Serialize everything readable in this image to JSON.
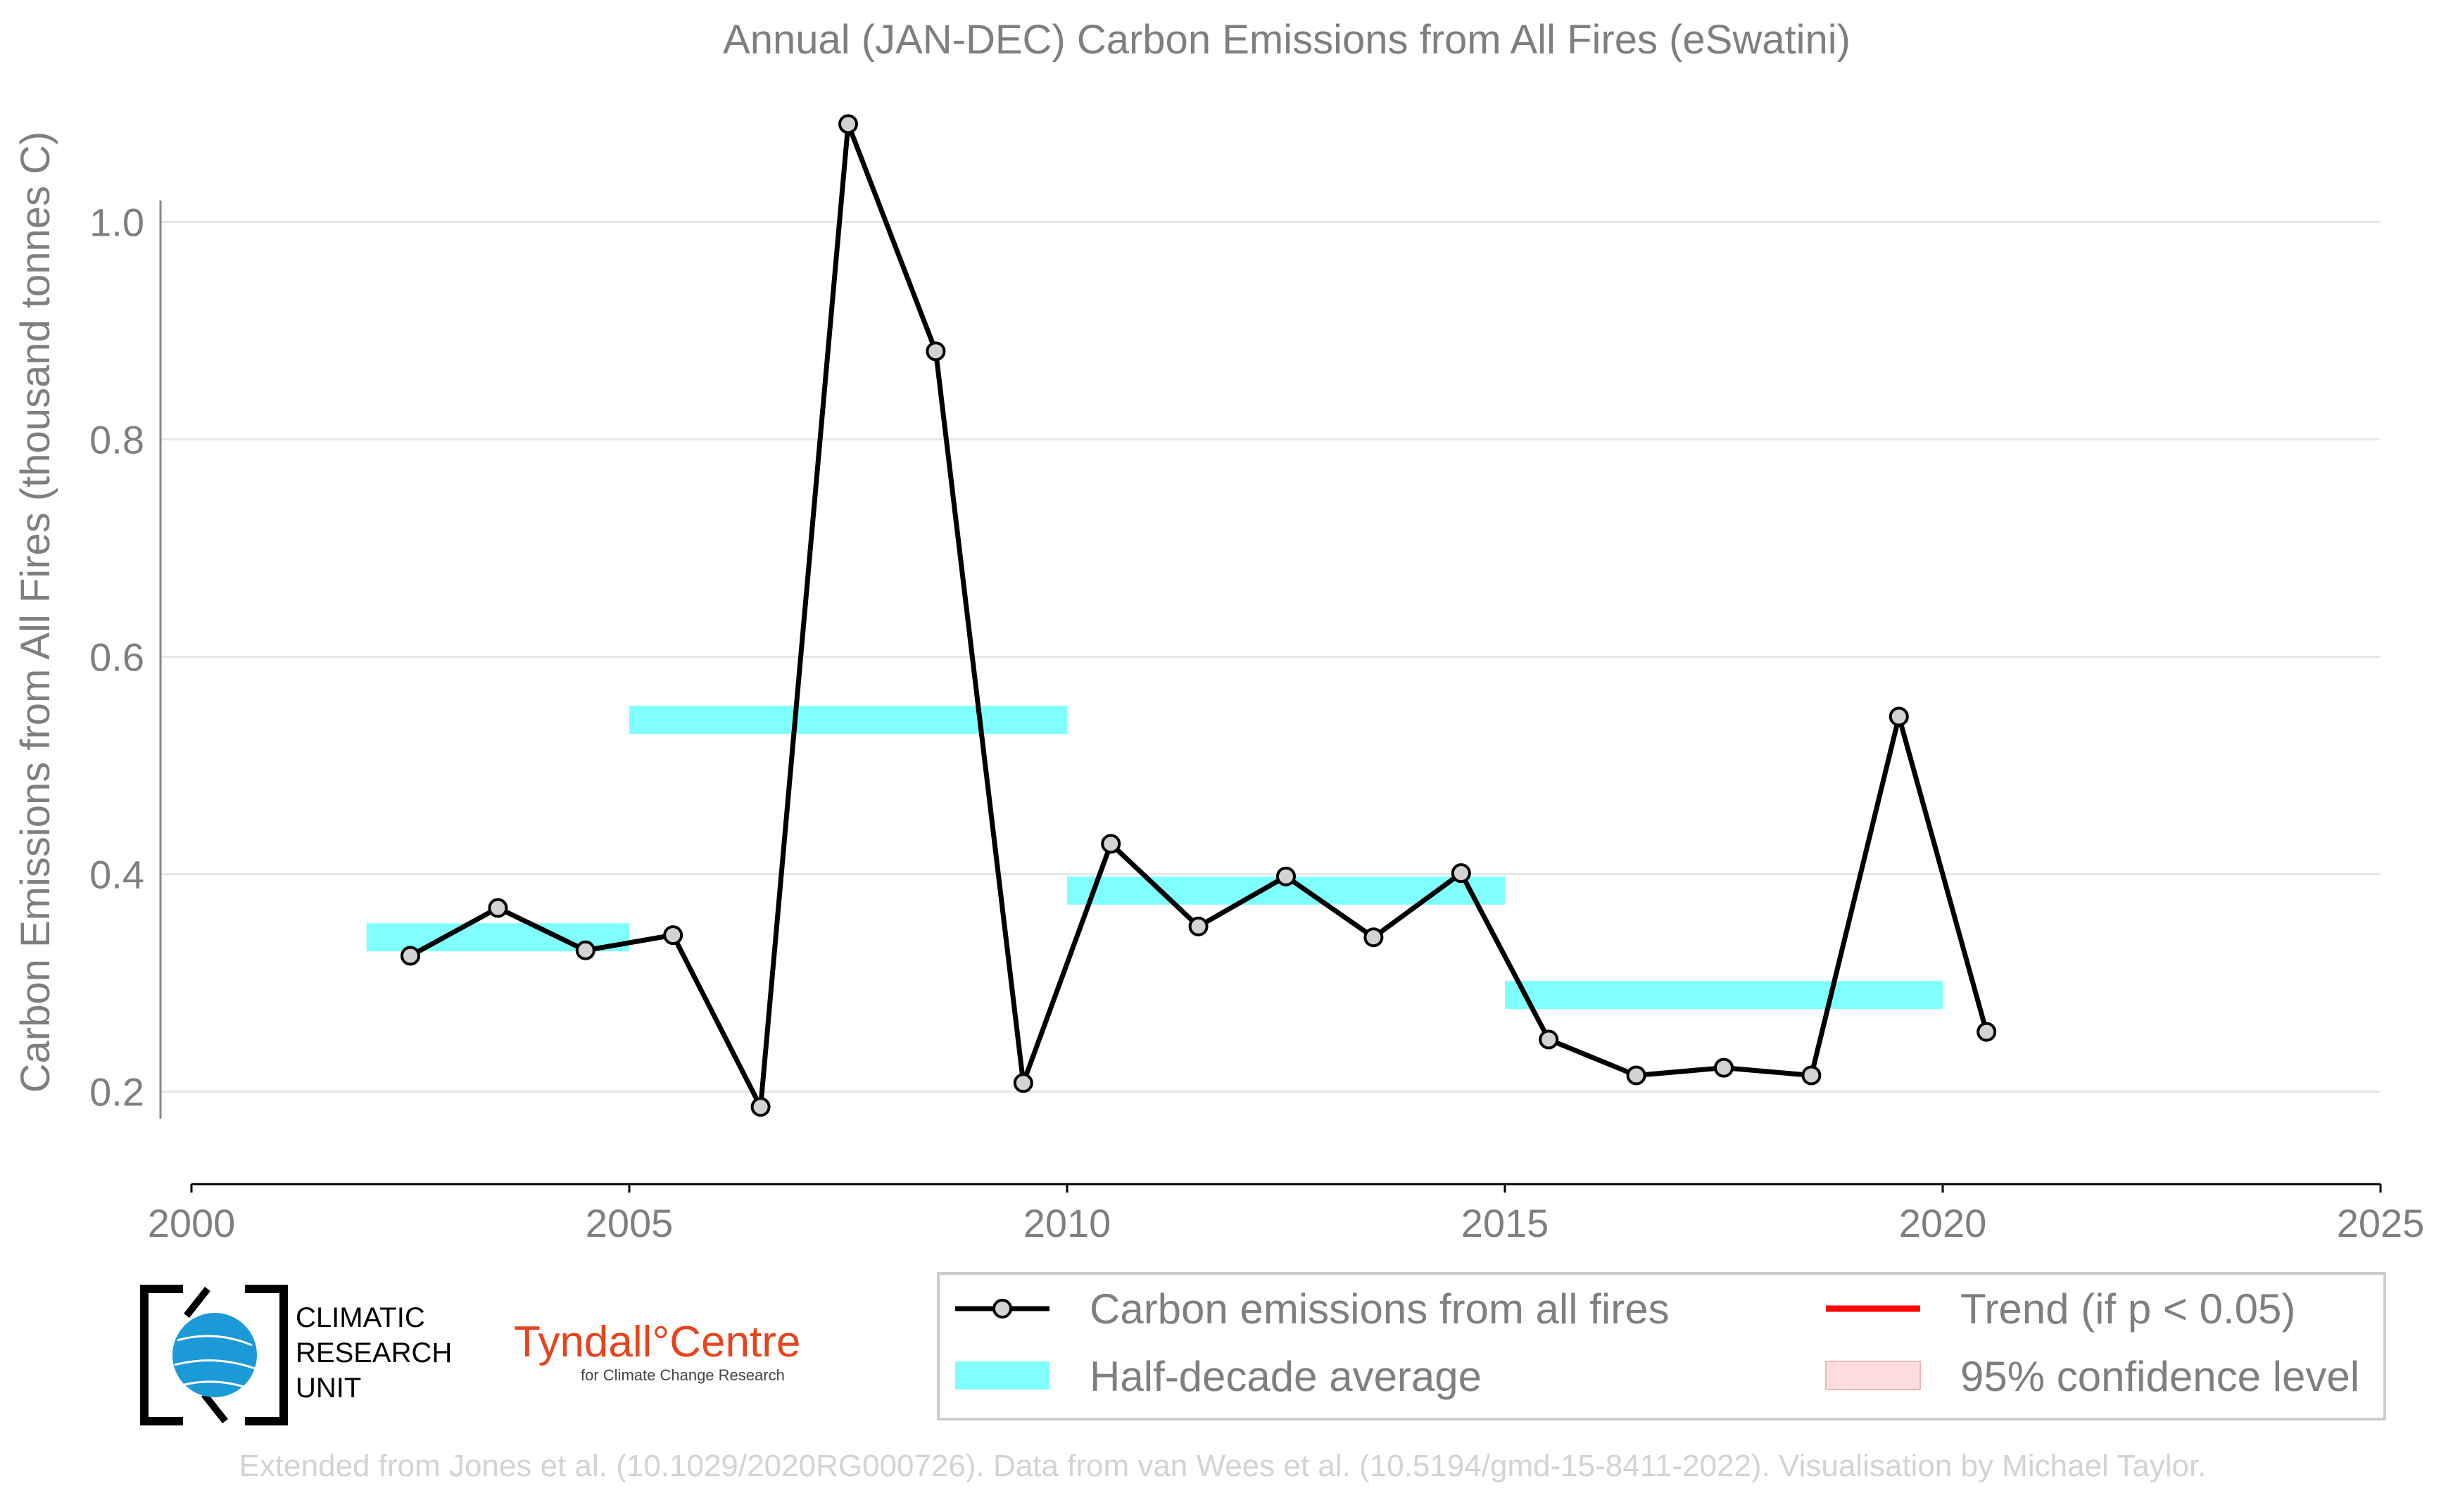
{
  "chart_data": {
    "type": "line",
    "title": "Annual (JAN-DEC) Carbon Emissions from All Fires (eSwatini)",
    "ylabel": "Carbon Emissions from All Fires (thousand tonnes C)",
    "xlim": [
      2000,
      2025
    ],
    "ylim": [
      0.115,
      1.12
    ],
    "xticks": [
      2000,
      2005,
      2010,
      2015,
      2020,
      2025
    ],
    "yticks": [
      0.2,
      0.4,
      0.6,
      0.8,
      1.0
    ],
    "ytick_labels": [
      "0.2",
      "0.4",
      "0.6",
      "0.8",
      "1.0"
    ],
    "grid": "horizontal",
    "series": [
      {
        "name": "Carbon emissions from all fires",
        "type": "line",
        "color": "#000000",
        "marker_color": "#d3d3d3",
        "x": [
          2002.5,
          2003.5,
          2004.5,
          2005.5,
          2006.5,
          2007.5,
          2008.5,
          2009.5,
          2010.5,
          2011.5,
          2012.5,
          2013.5,
          2014.5,
          2015.5,
          2016.5,
          2017.5,
          2018.5,
          2019.5,
          2020.5
        ],
        "y": [
          0.325,
          0.369,
          0.33,
          0.344,
          0.186,
          1.09,
          0.881,
          0.208,
          0.428,
          0.352,
          0.398,
          0.342,
          0.401,
          0.248,
          0.215,
          0.222,
          0.215,
          0.545,
          0.255
        ]
      },
      {
        "name": "Half-decade average",
        "type": "segments",
        "color": "#7fffff",
        "segments": [
          {
            "x0": 2002,
            "x1": 2005,
            "y": 0.342
          },
          {
            "x0": 2005,
            "x1": 2010,
            "y": 0.542
          },
          {
            "x0": 2010,
            "x1": 2015,
            "y": 0.385
          },
          {
            "x0": 2015,
            "x1": 2020,
            "y": 0.289
          }
        ]
      }
    ],
    "legend": {
      "placement": "bottom-right",
      "items": [
        {
          "label": "Carbon emissions from all fires",
          "kind": "line-marker",
          "color": "#000000"
        },
        {
          "label": "Trend (if p < 0.05)",
          "kind": "line",
          "color": "#ff0000"
        },
        {
          "label": "Half-decade average",
          "kind": "band",
          "color": "#7fffff"
        },
        {
          "label": "95% confidence level",
          "kind": "patch",
          "color": "#ffdddd"
        }
      ]
    }
  },
  "logos": {
    "cru_line1": "CLIMATIC",
    "cru_line2": "RESEARCH",
    "cru_line3": "UNIT",
    "tyndall_main": "Tyndall°Centre",
    "tyndall_sub": "for Climate Change Research"
  },
  "footer": "Extended from Jones et al. (10.1029/2020RG000726). Data from van Wees et al. (10.5194/gmd-15-8411-2022). Visualisation by Michael Taylor."
}
